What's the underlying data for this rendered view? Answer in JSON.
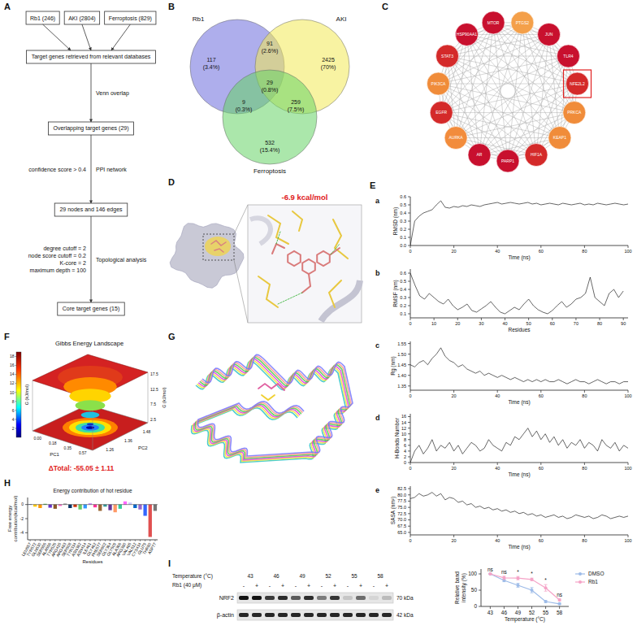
{
  "panels": [
    "A",
    "B",
    "C",
    "D",
    "E",
    "F",
    "G",
    "H",
    "I"
  ],
  "flowchart": {
    "sources": [
      "Rb1 (246)",
      "AKI (2804)",
      "Ferroptosis (829)"
    ],
    "steps": [
      {
        "left": [],
        "right": [],
        "box": "Target genes retrieved from relevant databases"
      },
      {
        "left": [],
        "right": [
          "Venn overlap"
        ],
        "box": "Overlapping target genes (29)"
      },
      {
        "left": [
          "confidence score > 0.4"
        ],
        "right": [
          "PPI network"
        ],
        "box": "29 nodes and 146 edges"
      },
      {
        "left": [
          "degree cutoff = 2",
          "node score cutoff = 0.2",
          "K-core = 2",
          "maximum depth = 100"
        ],
        "right": [
          "Topological analysis"
        ],
        "box": "Core target genes (15)"
      }
    ]
  },
  "venn": {
    "sets": [
      {
        "name": "Rb1",
        "color": "#6b6bdc"
      },
      {
        "name": "AKI",
        "color": "#f2ea55"
      },
      {
        "name": "Ferroptosis",
        "color": "#66d466"
      }
    ],
    "regions": [
      {
        "sets": [
          "Rb1"
        ],
        "count": 117,
        "percent": "(3.4%)"
      },
      {
        "sets": [
          "Rb1",
          "AKI"
        ],
        "count": 91,
        "percent": "(2.6%)"
      },
      {
        "sets": [
          "AKI"
        ],
        "count": 2425,
        "percent": "(70%)"
      },
      {
        "sets": [
          "Rb1",
          "AKI",
          "Ferroptosis"
        ],
        "count": 29,
        "percent": "(0.8%)"
      },
      {
        "sets": [
          "Rb1",
          "Ferroptosis"
        ],
        "count": 9,
        "percent": "(0.3%)"
      },
      {
        "sets": [
          "AKI",
          "Ferroptosis"
        ],
        "count": 259,
        "percent": "(7.5%)"
      },
      {
        "sets": [
          "Ferroptosis"
        ],
        "count": 532,
        "percent": "(15.4%)"
      }
    ]
  },
  "network": {
    "nodes": [
      {
        "label": "MTOR",
        "color": "#c8102e"
      },
      {
        "label": "PTGS2",
        "color": "#f4a04a"
      },
      {
        "label": "JUN",
        "color": "#c8102e"
      },
      {
        "label": "TLR4",
        "color": "#c8102e"
      },
      {
        "label": "NFE2L2",
        "color": "#d42a2a"
      },
      {
        "label": "PRKCA",
        "color": "#f08c3a"
      },
      {
        "label": "KEAP1",
        "color": "#f08c3a"
      },
      {
        "label": "HIF1A",
        "color": "#d42a2a"
      },
      {
        "label": "PARP1",
        "color": "#c8102e"
      },
      {
        "label": "AR",
        "color": "#c8102e"
      },
      {
        "label": "AURKA",
        "color": "#f28c3c"
      },
      {
        "label": "EGFR",
        "color": "#d42a2a"
      },
      {
        "label": "PIK3CA",
        "color": "#f08c3a"
      },
      {
        "label": "STAT3",
        "color": "#d42a2a"
      },
      {
        "label": "HSP90AA1",
        "color": "#c8102e"
      }
    ],
    "highlight": "NFE2L2"
  },
  "docking": {
    "energy": "-6.9 kcal/mol"
  },
  "landscape": {
    "title": "Gibbs Energy Landscape",
    "colorbar_label": "G (kJ/mol)",
    "colorbar_range": [
      0,
      19
    ],
    "colorbar_ticks": [
      2,
      4,
      6,
      8,
      10,
      12,
      14,
      16,
      18
    ],
    "x_label": "PC1",
    "y_label": "PC2",
    "z_label": "G (kJ/mol)",
    "x_tick_labels": [
      "0.00",
      "0.18",
      "0.35",
      "0.57"
    ],
    "y_tick_labels": [
      "1.26",
      "1.36",
      "1.48"
    ],
    "z_tick_labels": [
      "17.5",
      "12.5",
      "7.5",
      "2.5"
    ],
    "delta": "ΔTotal: -55.05 ± 1.11"
  },
  "blot": {
    "temperature_label": "Temperature (°C)",
    "temperatures": [
      43,
      46,
      49,
      52,
      55,
      58
    ],
    "treatment_label": "Rb1 (40 μM)",
    "treatments": [
      "-",
      "+"
    ],
    "rows": [
      {
        "name": "NRF2",
        "size": "70 kDa"
      },
      {
        "name": "β-actin",
        "size": "42 kDa"
      }
    ]
  },
  "chart_data": [
    {
      "type": "line",
      "title": "a",
      "x_label": "Time (ns)",
      "y_label": "RMSD (nm)",
      "x": [
        0,
        2,
        4,
        6,
        8,
        10,
        12,
        14,
        16,
        18,
        20,
        22,
        24,
        26,
        28,
        30,
        32,
        34,
        36,
        38,
        40,
        42,
        44,
        46,
        48,
        50,
        52,
        54,
        56,
        58,
        60,
        62,
        64,
        66,
        68,
        70,
        72,
        74,
        76,
        78,
        80,
        82,
        84,
        86,
        88,
        90,
        92,
        94,
        96,
        98,
        100
      ],
      "series": [
        {
          "color": "#000000",
          "values": [
            0.0,
            0.3,
            0.36,
            0.4,
            0.42,
            0.44,
            0.5,
            0.55,
            0.47,
            0.46,
            0.48,
            0.47,
            0.49,
            0.48,
            0.5,
            0.49,
            0.48,
            0.5,
            0.51,
            0.52,
            0.53,
            0.51,
            0.52,
            0.53,
            0.52,
            0.51,
            0.52,
            0.53,
            0.51,
            0.52,
            0.5,
            0.51,
            0.52,
            0.51,
            0.5,
            0.52,
            0.51,
            0.5,
            0.51,
            0.52,
            0.5,
            0.51,
            0.5,
            0.52,
            0.51,
            0.5,
            0.51,
            0.52,
            0.51,
            0.5,
            0.51
          ]
        }
      ],
      "xlim": [
        0,
        100
      ],
      "ylim": [
        0,
        0.6
      ],
      "xticks": [
        0,
        20,
        40,
        60,
        80,
        100
      ],
      "yticks": [
        {
          "value": 0,
          "label": "0.0"
        },
        0.1,
        0.2,
        0.3,
        0.4,
        0.5,
        0.6
      ],
      "grid": false
    },
    {
      "type": "line",
      "title": "b",
      "x_label": "Residues",
      "y_label": "RMSF (nm)",
      "x": [
        0,
        2,
        4,
        6,
        8,
        10,
        12,
        14,
        16,
        18,
        20,
        22,
        24,
        26,
        28,
        30,
        32,
        34,
        36,
        38,
        40,
        42,
        44,
        46,
        48,
        50,
        52,
        54,
        56,
        58,
        60,
        62,
        64,
        66,
        68,
        70,
        72,
        74,
        76,
        78,
        80,
        82,
        84,
        86,
        88,
        90
      ],
      "series": [
        {
          "color": "#000000",
          "values": [
            0.6,
            0.45,
            0.32,
            0.28,
            0.35,
            0.3,
            0.25,
            0.22,
            0.28,
            0.2,
            0.15,
            0.18,
            0.22,
            0.14,
            0.12,
            0.16,
            0.2,
            0.25,
            0.18,
            0.12,
            0.1,
            0.14,
            0.18,
            0.15,
            0.22,
            0.28,
            0.2,
            0.15,
            0.12,
            0.1,
            0.14,
            0.2,
            0.25,
            0.18,
            0.22,
            0.28,
            0.3,
            0.35,
            0.55,
            0.3,
            0.25,
            0.2,
            0.35,
            0.4,
            0.3,
            0.38
          ]
        }
      ],
      "xlim": [
        0,
        92
      ],
      "ylim": [
        0.05,
        0.65
      ],
      "xticks": [
        0,
        10,
        20,
        30,
        40,
        50,
        60,
        70,
        80,
        90
      ],
      "yticks": [
        0.1,
        0.2,
        0.3,
        0.4,
        0.5,
        0.6
      ],
      "grid": false
    },
    {
      "type": "line",
      "title": "c",
      "x_label": "Time (ns)",
      "y_label": "Rg (nm)",
      "x": [
        0,
        2,
        4,
        6,
        8,
        10,
        12,
        14,
        16,
        18,
        20,
        22,
        24,
        26,
        28,
        30,
        32,
        34,
        36,
        38,
        40,
        42,
        44,
        46,
        48,
        50,
        52,
        54,
        56,
        58,
        60,
        62,
        64,
        66,
        68,
        70,
        72,
        74,
        76,
        78,
        80,
        82,
        84,
        86,
        88,
        90,
        92,
        94,
        96,
        98,
        100
      ],
      "series": [
        {
          "color": "#000000",
          "values": [
            1.45,
            1.44,
            1.46,
            1.47,
            1.45,
            1.48,
            1.5,
            1.53,
            1.49,
            1.47,
            1.46,
            1.44,
            1.45,
            1.43,
            1.42,
            1.41,
            1.42,
            1.4,
            1.41,
            1.4,
            1.39,
            1.4,
            1.39,
            1.38,
            1.39,
            1.38,
            1.37,
            1.38,
            1.37,
            1.38,
            1.37,
            1.38,
            1.37,
            1.37,
            1.38,
            1.37,
            1.36,
            1.37,
            1.38,
            1.37,
            1.37,
            1.36,
            1.37,
            1.38,
            1.37,
            1.36,
            1.37,
            1.37,
            1.36,
            1.37,
            1.37
          ]
        }
      ],
      "xlim": [
        0,
        100
      ],
      "ylim": [
        1.33,
        1.56
      ],
      "xticks": [
        0,
        20,
        40,
        60,
        80,
        100
      ],
      "yticks": [
        1.35,
        {
          "value": 1.4,
          "label": "1.40"
        },
        1.45,
        {
          "value": 1.5,
          "label": "1.50"
        },
        1.55
      ],
      "grid": false
    },
    {
      "type": "line",
      "title": "d",
      "x_label": "Time (ns)",
      "y_label": "H-Bonds Number",
      "x": [
        0,
        2,
        4,
        6,
        8,
        10,
        12,
        14,
        16,
        18,
        20,
        22,
        24,
        26,
        28,
        30,
        32,
        34,
        36,
        38,
        40,
        42,
        44,
        46,
        48,
        50,
        52,
        54,
        56,
        58,
        60,
        62,
        64,
        66,
        68,
        70,
        72,
        74,
        76,
        78,
        80,
        82,
        84,
        86,
        88,
        90,
        92,
        94,
        96,
        98,
        100
      ],
      "series": [
        {
          "color": "#000000",
          "values": [
            0,
            4,
            6,
            3,
            5,
            8,
            4,
            6,
            5,
            7,
            4,
            6,
            3,
            5,
            7,
            6,
            4,
            5,
            8,
            6,
            5,
            4,
            7,
            6,
            9,
            8,
            10,
            12,
            9,
            11,
            8,
            10,
            7,
            9,
            6,
            8,
            5,
            7,
            6,
            8,
            5,
            7,
            6,
            4,
            8,
            6,
            5,
            7,
            4,
            6,
            5
          ]
        }
      ],
      "xlim": [
        0,
        100
      ],
      "ylim": [
        0,
        17
      ],
      "xticks": [
        0,
        20,
        40,
        60,
        80,
        100
      ],
      "yticks": [
        0,
        2,
        4,
        6,
        8,
        10,
        12,
        14,
        16
      ],
      "grid": false
    },
    {
      "type": "line",
      "title": "e",
      "x_label": "Time (ns)",
      "y_label": "SASA (nm²)",
      "x": [
        0,
        2,
        4,
        6,
        8,
        10,
        12,
        14,
        16,
        18,
        20,
        22,
        24,
        26,
        28,
        30,
        32,
        34,
        36,
        38,
        40,
        42,
        44,
        46,
        48,
        50,
        52,
        54,
        56,
        58,
        60,
        62,
        64,
        66,
        68,
        70,
        72,
        74,
        76,
        78,
        80,
        82,
        84,
        86,
        88,
        90,
        92,
        94,
        96,
        98,
        100
      ],
      "series": [
        {
          "color": "#000000",
          "values": [
            78.5,
            79.0,
            80.5,
            79.5,
            80.0,
            81.0,
            79.5,
            80.5,
            78.0,
            79.0,
            78.5,
            77.0,
            77.5,
            76.0,
            76.5,
            75.0,
            75.5,
            74.5,
            75.0,
            74.0,
            74.5,
            73.5,
            74.0,
            73.0,
            73.5,
            72.5,
            73.0,
            72.0,
            72.5,
            71.5,
            72.0,
            71.0,
            71.5,
            72.0,
            71.0,
            71.5,
            70.5,
            71.0,
            72.0,
            71.5,
            71.0,
            71.5,
            70.5,
            71.0,
            72.0,
            71.5,
            70.5,
            71.0,
            71.5,
            71.0,
            71.5
          ]
        }
      ],
      "xlim": [
        0,
        100
      ],
      "ylim": [
        64,
        83.5
      ],
      "xticks": [
        0,
        20,
        40,
        60,
        80,
        100
      ],
      "yticks": [
        {
          "value": 65,
          "label": "65.0"
        },
        67.5,
        {
          "value": 70,
          "label": "70.0"
        },
        72.5,
        {
          "value": 75,
          "label": "75.0"
        },
        77.5,
        {
          "value": 80,
          "label": "80.0"
        },
        82.5
      ],
      "grid": false
    },
    {
      "type": "bar",
      "title": "Energy contribution of hot residue",
      "x_label": "Residues",
      "y_label": "Free energy contribution(kcal/mol)",
      "categories": [
        "LEU557",
        "TYR572",
        "GLN530",
        "SER555",
        "ALA556",
        "TYR525",
        "ARG415",
        "ARG483",
        "SER508",
        "TYR334",
        "ASN382",
        "ASN414",
        "ILE461",
        "GLY462",
        "PHE577",
        "SER602",
        "GLY364",
        "GLY509",
        "ALA366",
        "ARG380",
        "VAL465",
        "VAL512",
        "CYS434",
        "GLU79",
        "THR80",
        "ASP77"
      ],
      "values": [
        0.05,
        -0.3,
        -0.5,
        0.1,
        -0.45,
        -0.6,
        -0.2,
        0.15,
        -0.5,
        -0.35,
        -0.7,
        -0.55,
        0.2,
        -0.4,
        -0.9,
        -0.3,
        -0.8,
        -1.1,
        -0.6,
        0.45,
        0.3,
        -0.5,
        -0.7,
        -1.6,
        -4.6,
        -0.9
      ],
      "colors": [
        "#1f3b8c",
        "#ffcc00",
        "#ff9900",
        "#33aa33",
        "#6633cc",
        "#8b5a2b",
        "#ff66cc",
        "#999999",
        "#003366",
        "#cc3300",
        "#66cc66",
        "#3399ff",
        "#cc99ff",
        "#ff3399",
        "#996633",
        "#339999",
        "#663399",
        "#ff9966",
        "#33cc99",
        "#ff66ff",
        "#ccccff",
        "#0066cc",
        "#9966cc",
        "#3366ff",
        "#e05050",
        "#777777"
      ],
      "ylim": [
        -5,
        1
      ],
      "yticks": [
        -4,
        -2,
        0
      ],
      "grid": false
    },
    {
      "type": "line",
      "x_label": "Temperature (°C)",
      "y_label": "Relative band intensity (%)",
      "x": [
        43,
        46,
        49,
        52,
        55,
        58
      ],
      "series": [
        {
          "name": "DMSO",
          "color": "#9dbbe8",
          "values": [
            100,
            80,
            65,
            50,
            15,
            8
          ],
          "errors": [
            0,
            4,
            6,
            8,
            3,
            2
          ],
          "marker": "circle",
          "line_style": "solid"
        },
        {
          "name": "Rb1",
          "color": "#f5a3c7",
          "values": [
            100,
            88,
            87,
            83,
            57,
            20
          ],
          "errors": [
            0,
            5,
            5,
            4,
            10,
            3
          ],
          "marker": "circle",
          "line_style": "solid"
        }
      ],
      "xlim": [
        41,
        60
      ],
      "ylim": [
        0,
        115
      ],
      "xticks": [
        43,
        46,
        49,
        52,
        55,
        58
      ],
      "yticks": [
        0,
        50,
        100
      ],
      "annotations": [
        "ns",
        "ns",
        "*",
        "*",
        "*",
        "ns"
      ],
      "legend": "right",
      "grid": false
    }
  ]
}
